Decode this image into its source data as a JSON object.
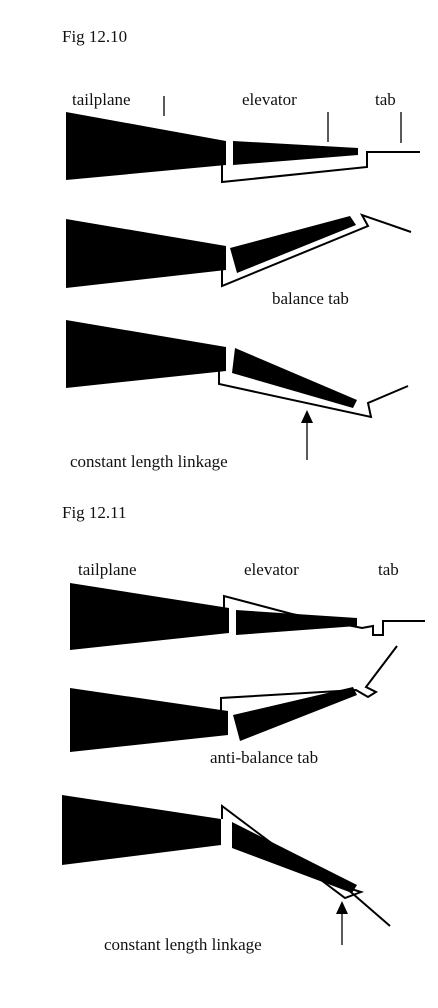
{
  "figures": [
    {
      "title": "Fig 12.10",
      "labels": {
        "tailplane": "tailplane",
        "elevator": "elevator",
        "tab": "tab",
        "balance_tab": "balance tab",
        "linkage": "constant length linkage"
      }
    },
    {
      "title": "Fig 12.11",
      "labels": {
        "tailplane": "tailplane",
        "elevator": "elevator",
        "tab": "tab",
        "anti_balance_tab": "anti-balance tab",
        "linkage": "constant length linkage"
      }
    }
  ]
}
